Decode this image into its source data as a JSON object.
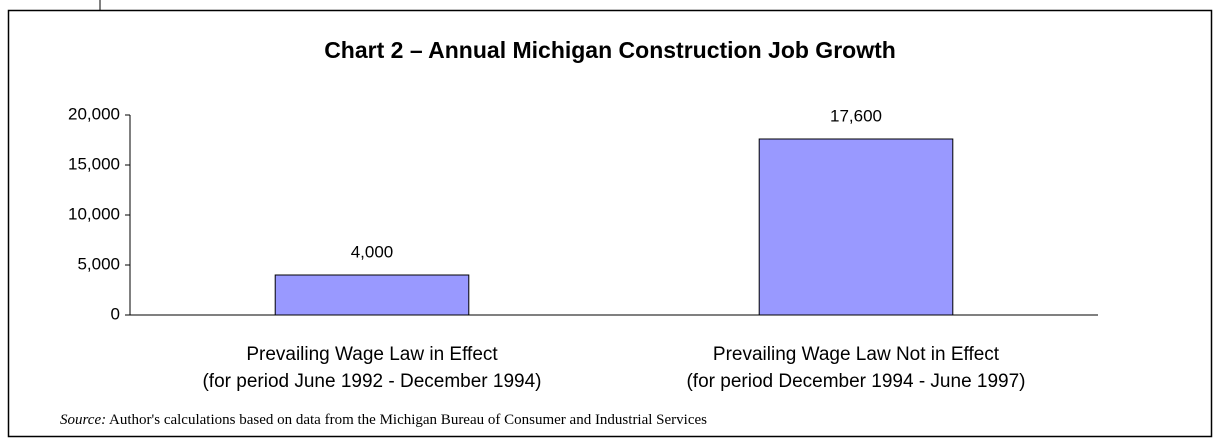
{
  "chart_data": {
    "type": "bar",
    "title": "Chart 2 – Annual Michigan Construction Job Growth",
    "categories": [
      [
        "Prevailing Wage Law in Effect",
        "(for period June 1992 - December 1994)"
      ],
      [
        "Prevailing Wage Law Not in Effect",
        "(for period December 1994 - June 1997)"
      ]
    ],
    "values": [
      4000,
      17600
    ],
    "value_labels": [
      "4,000",
      "17,600"
    ],
    "color": "#9999ff",
    "ylim": [
      0,
      20000
    ],
    "yticks": [
      0,
      {
        "value": 5000,
        "label": "5,000"
      },
      {
        "value": 10000,
        "label": "10,000"
      },
      {
        "value": 15000,
        "label": "15,000"
      },
      {
        "value": 20000,
        "label": "20,000"
      }
    ],
    "grid": false,
    "source": {
      "label": "Source:",
      "text": "Author's calculations based on data from the Michigan Bureau of Consumer and Industrial Services"
    }
  }
}
